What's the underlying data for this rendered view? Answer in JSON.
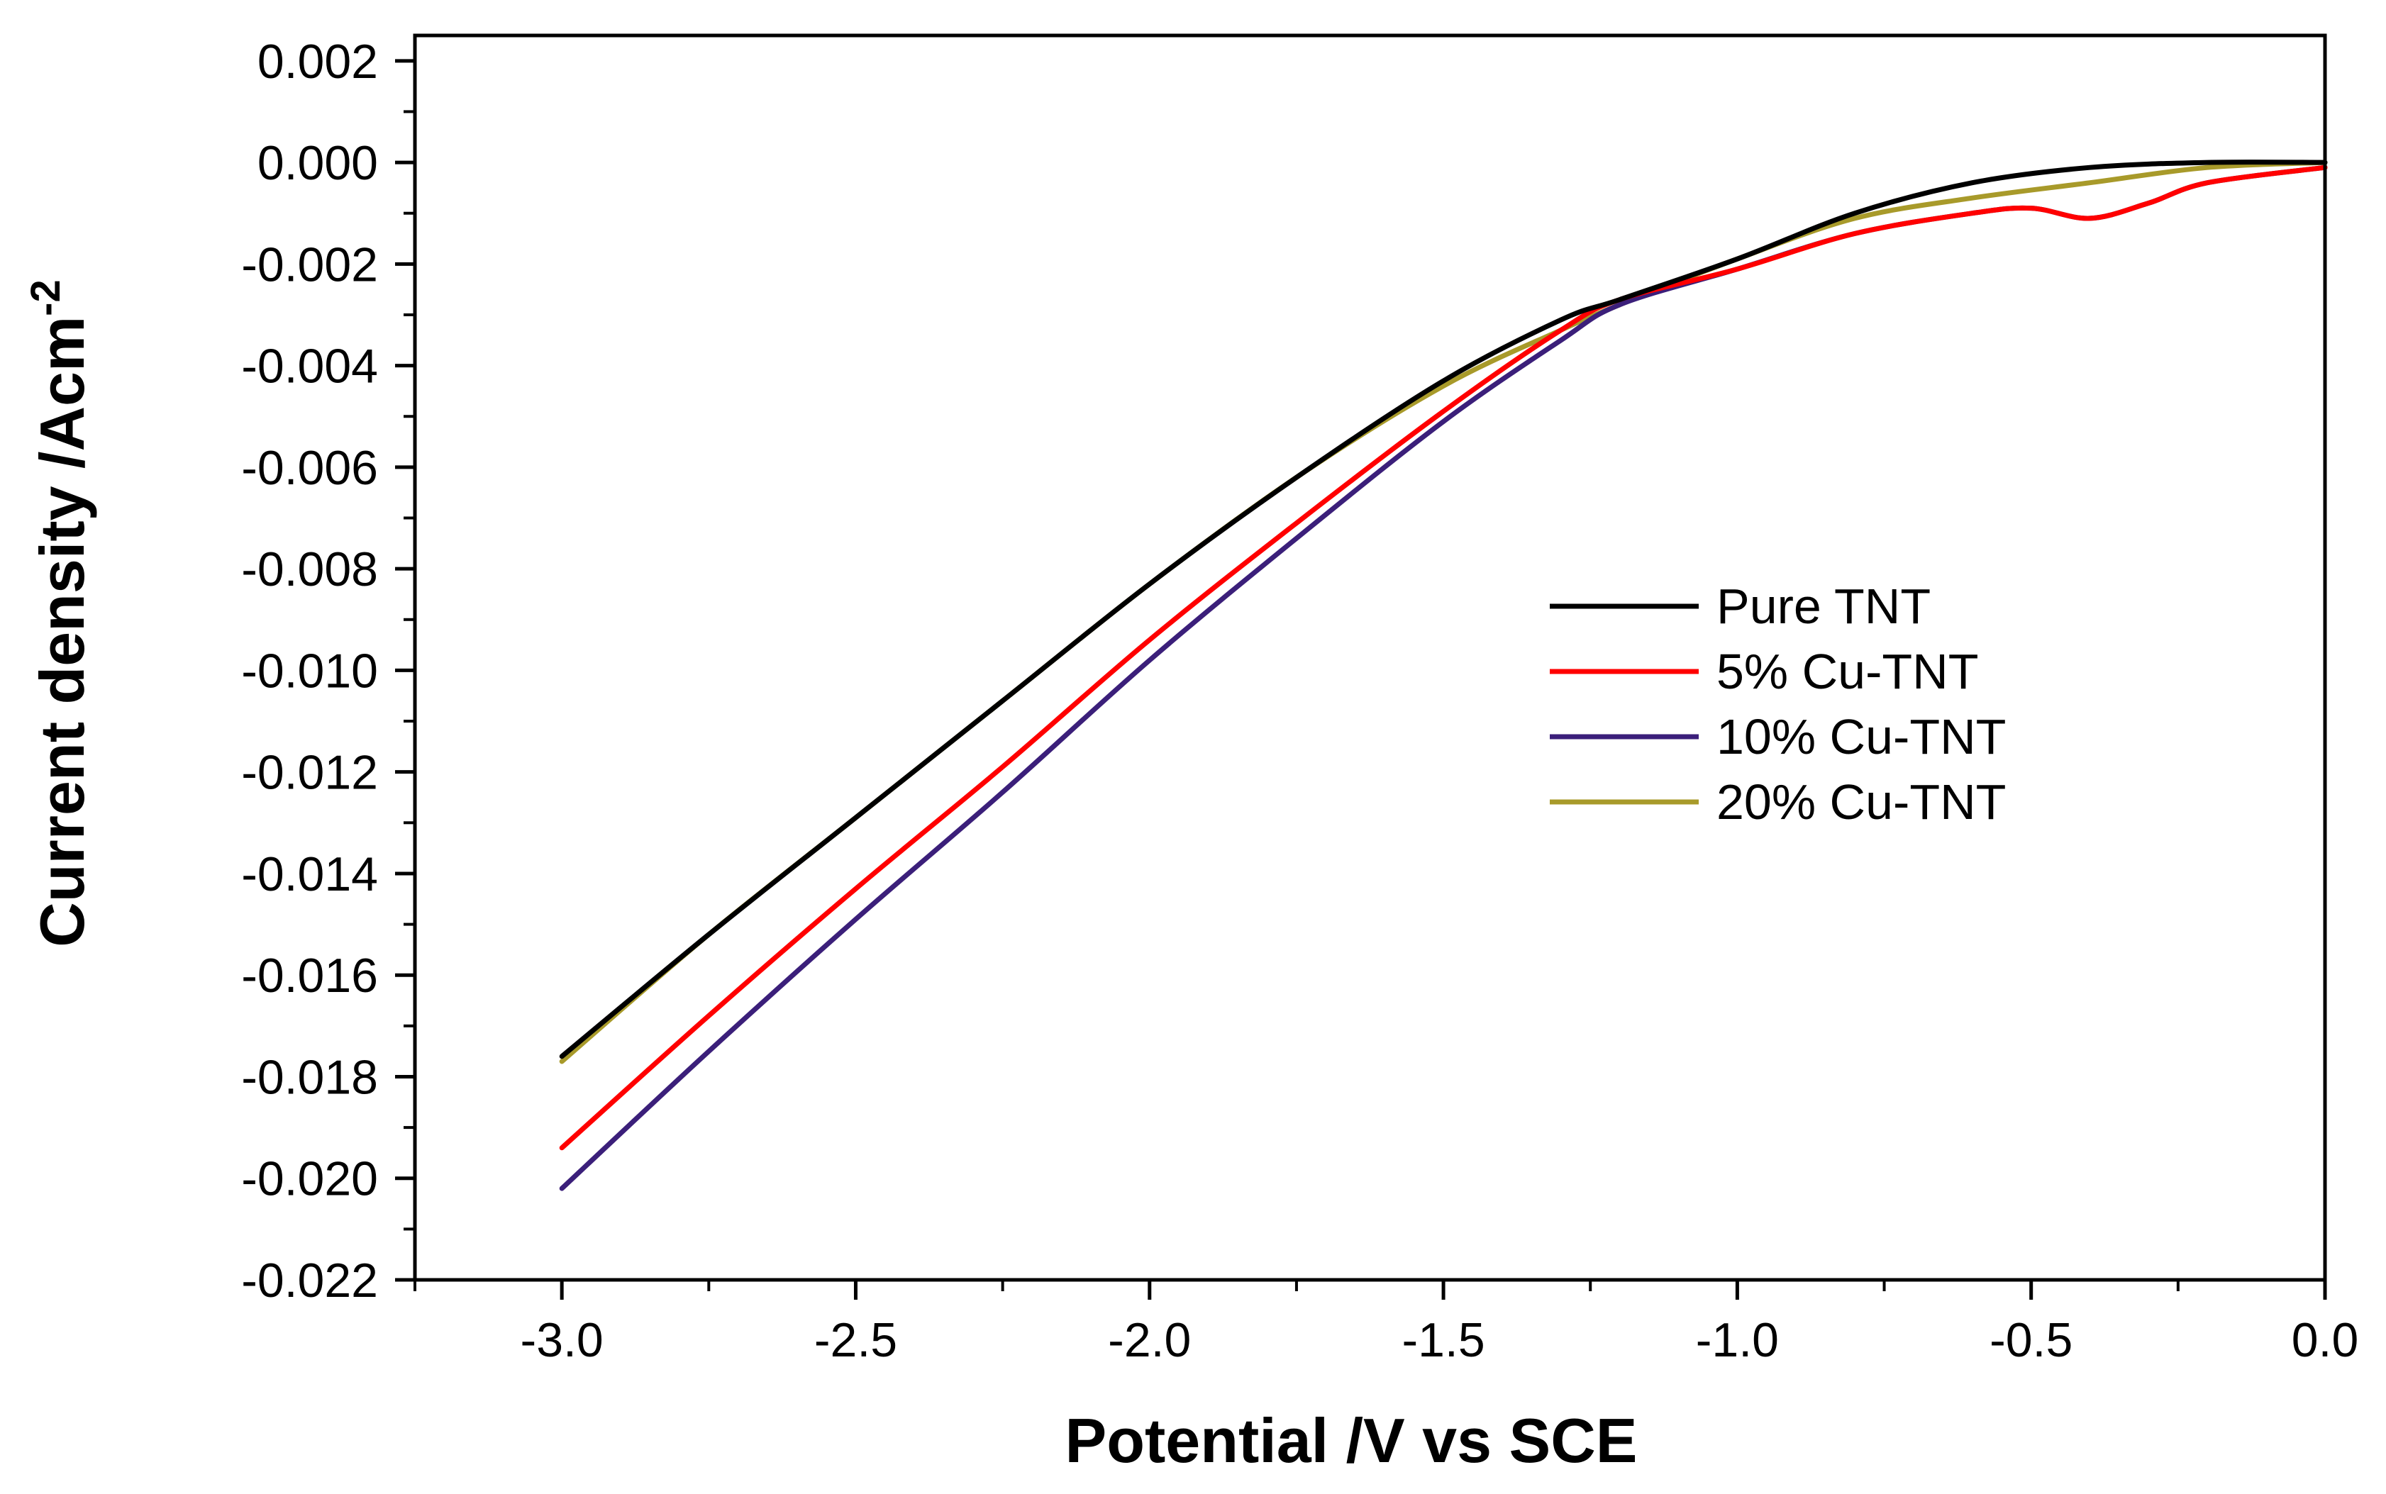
{
  "chart_data": {
    "type": "line",
    "xlabel": "Potential /V vs SCE",
    "ylabel": "Current density /Acm",
    "ylabel_superscript": "-2",
    "xlim": [
      -3.25,
      0.0
    ],
    "ylim": [
      -0.022,
      0.0025
    ],
    "x_ticks": [
      -3.0,
      -2.5,
      -2.0,
      -1.5,
      -1.0,
      -0.5,
      0.0
    ],
    "x_tick_labels": [
      "-3.0",
      "-2.5",
      "-2.0",
      "-1.5",
      "-1.0",
      "-0.5",
      "0.0"
    ],
    "y_ticks": [
      0.002,
      0.0,
      -0.002,
      -0.004,
      -0.006,
      -0.008,
      -0.01,
      -0.012,
      -0.014,
      -0.016,
      -0.018,
      -0.02,
      -0.022
    ],
    "y_tick_labels": [
      "0.002",
      "0.000",
      "-0.002",
      "-0.004",
      "-0.006",
      "-0.008",
      "-0.010",
      "-0.012",
      "-0.014",
      "-0.016",
      "-0.018",
      "-0.020",
      "-0.022"
    ],
    "grid": false,
    "legend_position": "center-right",
    "series": [
      {
        "name": "Pure TNT",
        "color": "#000000",
        "x": [
          -3.0,
          -2.75,
          -2.5,
          -2.25,
          -2.0,
          -1.75,
          -1.5,
          -1.3,
          -1.2,
          -1.0,
          -0.8,
          -0.6,
          -0.4,
          -0.2,
          0.0
        ],
        "y": [
          -0.0176,
          -0.0152,
          -0.0129,
          -0.0106,
          -0.0083,
          -0.0062,
          -0.0043,
          -0.0031,
          -0.0027,
          -0.0019,
          -0.001,
          -0.0004,
          -0.0001,
          0.0,
          0.0
        ]
      },
      {
        "name": "5% Cu-TNT",
        "color": "#ff0000",
        "x": [
          -3.0,
          -2.75,
          -2.5,
          -2.25,
          -2.0,
          -1.75,
          -1.5,
          -1.3,
          -1.2,
          -1.0,
          -0.8,
          -0.6,
          -0.5,
          -0.4,
          -0.3,
          -0.2,
          0.0
        ],
        "y": [
          -0.0194,
          -0.0168,
          -0.0143,
          -0.0119,
          -0.0094,
          -0.0071,
          -0.0049,
          -0.0033,
          -0.0027,
          -0.0021,
          -0.0014,
          -0.001,
          -0.0009,
          -0.0011,
          -0.0008,
          -0.0004,
          -0.0001
        ]
      },
      {
        "name": "10% Cu-TNT",
        "color": "#3b1f7a",
        "x": [
          -3.0,
          -2.75,
          -2.5,
          -2.25,
          -2.0,
          -1.75,
          -1.5,
          -1.3,
          -1.2,
          -1.0,
          -0.8,
          -0.6,
          -0.5,
          -0.4,
          -0.3,
          -0.2,
          0.0
        ],
        "y": [
          -0.0202,
          -0.0175,
          -0.0149,
          -0.0124,
          -0.0098,
          -0.0074,
          -0.0051,
          -0.0035,
          -0.0028,
          -0.0021,
          -0.0014,
          -0.001,
          -0.0009,
          -0.0011,
          -0.0008,
          -0.0004,
          -0.0001
        ]
      },
      {
        "name": "20% Cu-TNT",
        "color": "#a89a2a",
        "x": [
          -3.0,
          -2.75,
          -2.5,
          -2.25,
          -2.0,
          -1.75,
          -1.5,
          -1.3,
          -1.2,
          -1.0,
          -0.8,
          -0.6,
          -0.4,
          -0.2,
          0.0
        ],
        "y": [
          -0.0177,
          -0.0152,
          -0.0129,
          -0.0106,
          -0.0083,
          -0.0062,
          -0.0044,
          -0.0033,
          -0.0028,
          -0.0019,
          -0.0011,
          -0.0007,
          -0.0004,
          -0.0001,
          0.0
        ]
      }
    ]
  }
}
